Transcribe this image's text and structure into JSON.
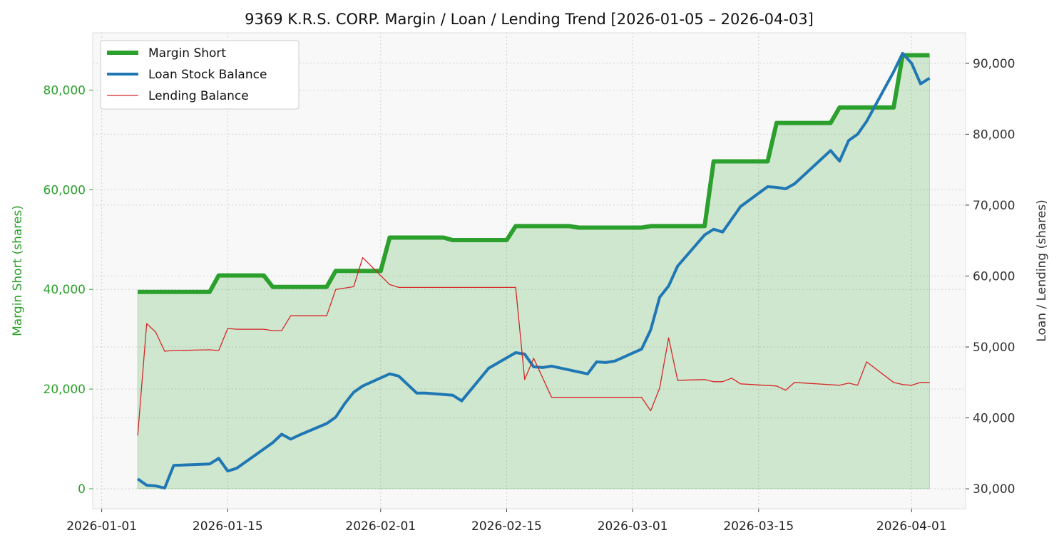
{
  "chart_data": {
    "type": "line",
    "title": "9369 K.R.S. CORP. Margin / Loan / Lending Trend [2026-01-05 – 2026-04-03]",
    "ylabel_left": "Margin Short (shares)",
    "ylabel_right": "Loan / Lending (shares)",
    "xlabel": "",
    "x_ticks": [
      "2026-01-01",
      "2026-01-15",
      "2026-02-01",
      "2026-02-15",
      "2026-03-01",
      "2026-03-15",
      "2026-04-01"
    ],
    "y_left_ticks": [
      "0",
      "20,000",
      "40,000",
      "60,000",
      "80,000"
    ],
    "y_right_ticks": [
      "30,000",
      "40,000",
      "50,000",
      "60,000",
      "70,000",
      "80,000",
      "90,000"
    ],
    "xlim": [
      "2025-12-31",
      "2026-04-07"
    ],
    "ylim_left": [
      -4000,
      91500
    ],
    "ylim_right": [
      27200,
      94300
    ],
    "grid": true,
    "legend_position": "top-left",
    "colors": {
      "margin": "#2ca02c",
      "loan": "#1f77b4",
      "lending": "#d62728",
      "fill": "#2ca02c",
      "left_axis": "#2ca02c",
      "right_axis": "#333333"
    },
    "series": [
      {
        "name": "Margin Short",
        "axis": "left",
        "points": [
          [
            "2026-01-05",
            39500
          ],
          [
            "2026-01-13",
            39500
          ],
          [
            "2026-01-14",
            42800
          ],
          [
            "2026-01-19",
            42800
          ],
          [
            "2026-01-20",
            40500
          ],
          [
            "2026-01-26",
            40500
          ],
          [
            "2026-01-27",
            43700
          ],
          [
            "2026-02-01",
            43700
          ],
          [
            "2026-02-02",
            50400
          ],
          [
            "2026-02-08",
            50400
          ],
          [
            "2026-02-09",
            49900
          ],
          [
            "2026-02-15",
            49900
          ],
          [
            "2026-02-16",
            52700
          ],
          [
            "2026-02-22",
            52700
          ],
          [
            "2026-02-23",
            52400
          ],
          [
            "2026-03-02",
            52400
          ],
          [
            "2026-03-03",
            52700
          ],
          [
            "2026-03-09",
            52700
          ],
          [
            "2026-03-10",
            65700
          ],
          [
            "2026-03-16",
            65700
          ],
          [
            "2026-03-17",
            73400
          ],
          [
            "2026-03-23",
            73400
          ],
          [
            "2026-03-24",
            76500
          ],
          [
            "2026-03-30",
            76500
          ],
          [
            "2026-03-31",
            87000
          ],
          [
            "2026-04-03",
            87000
          ]
        ]
      },
      {
        "name": "Loan Stock Balance",
        "axis": "right",
        "points": [
          [
            "2026-01-05",
            31400
          ],
          [
            "2026-01-06",
            30500
          ],
          [
            "2026-01-07",
            30400
          ],
          [
            "2026-01-08",
            30100
          ],
          [
            "2026-01-09",
            33300
          ],
          [
            "2026-01-13",
            33500
          ],
          [
            "2026-01-14",
            34300
          ],
          [
            "2026-01-15",
            32500
          ],
          [
            "2026-01-16",
            32900
          ],
          [
            "2026-01-19",
            35600
          ],
          [
            "2026-01-20",
            36500
          ],
          [
            "2026-01-21",
            37700
          ],
          [
            "2026-01-22",
            37000
          ],
          [
            "2026-01-23",
            37600
          ],
          [
            "2026-01-26",
            39200
          ],
          [
            "2026-01-27",
            40100
          ],
          [
            "2026-01-28",
            42000
          ],
          [
            "2026-01-29",
            43600
          ],
          [
            "2026-01-30",
            44500
          ],
          [
            "2026-02-02",
            46200
          ],
          [
            "2026-02-03",
            45900
          ],
          [
            "2026-02-05",
            43500
          ],
          [
            "2026-02-06",
            43500
          ],
          [
            "2026-02-09",
            43200
          ],
          [
            "2026-02-10",
            42400
          ],
          [
            "2026-02-13",
            47000
          ],
          [
            "2026-02-16",
            49200
          ],
          [
            "2026-02-17",
            49000
          ],
          [
            "2026-02-18",
            47200
          ],
          [
            "2026-02-19",
            47100
          ],
          [
            "2026-02-20",
            47300
          ],
          [
            "2026-02-24",
            46200
          ],
          [
            "2026-02-25",
            47900
          ],
          [
            "2026-02-26",
            47800
          ],
          [
            "2026-02-27",
            48000
          ],
          [
            "2026-03-02",
            49700
          ],
          [
            "2026-03-03",
            52400
          ],
          [
            "2026-03-04",
            57000
          ],
          [
            "2026-03-05",
            58600
          ],
          [
            "2026-03-06",
            61400
          ],
          [
            "2026-03-09",
            65800
          ],
          [
            "2026-03-10",
            66600
          ],
          [
            "2026-03-11",
            66200
          ],
          [
            "2026-03-13",
            69800
          ],
          [
            "2026-03-16",
            72600
          ],
          [
            "2026-03-17",
            72500
          ],
          [
            "2026-03-18",
            72300
          ],
          [
            "2026-03-19",
            73000
          ],
          [
            "2026-03-23",
            77700
          ],
          [
            "2026-03-24",
            76200
          ],
          [
            "2026-03-25",
            79100
          ],
          [
            "2026-03-26",
            80000
          ],
          [
            "2026-03-27",
            81800
          ],
          [
            "2026-03-30",
            88800
          ],
          [
            "2026-03-31",
            91400
          ],
          [
            "2026-04-01",
            90000
          ],
          [
            "2026-04-02",
            87100
          ],
          [
            "2026-04-03",
            87900
          ]
        ]
      },
      {
        "name": "Lending Balance",
        "axis": "right",
        "points": [
          [
            "2026-01-05",
            37500
          ],
          [
            "2026-01-06",
            53300
          ],
          [
            "2026-01-07",
            52100
          ],
          [
            "2026-01-08",
            49400
          ],
          [
            "2026-01-09",
            49500
          ],
          [
            "2026-01-13",
            49600
          ],
          [
            "2026-01-14",
            49500
          ],
          [
            "2026-01-15",
            52600
          ],
          [
            "2026-01-16",
            52500
          ],
          [
            "2026-01-19",
            52500
          ],
          [
            "2026-01-20",
            52300
          ],
          [
            "2026-01-21",
            52300
          ],
          [
            "2026-01-22",
            54400
          ],
          [
            "2026-01-26",
            54400
          ],
          [
            "2026-01-27",
            58100
          ],
          [
            "2026-01-29",
            58500
          ],
          [
            "2026-01-30",
            62600
          ],
          [
            "2026-02-02",
            58800
          ],
          [
            "2026-02-03",
            58400
          ],
          [
            "2026-02-16",
            58400
          ],
          [
            "2026-02-17",
            45400
          ],
          [
            "2026-02-18",
            48400
          ],
          [
            "2026-02-20",
            42900
          ],
          [
            "2026-03-02",
            42900
          ],
          [
            "2026-03-03",
            41000
          ],
          [
            "2026-03-04",
            44200
          ],
          [
            "2026-03-05",
            51300
          ],
          [
            "2026-03-06",
            45300
          ],
          [
            "2026-03-09",
            45400
          ],
          [
            "2026-03-10",
            45100
          ],
          [
            "2026-03-11",
            45100
          ],
          [
            "2026-03-12",
            45600
          ],
          [
            "2026-03-13",
            44800
          ],
          [
            "2026-03-17",
            44500
          ],
          [
            "2026-03-18",
            43900
          ],
          [
            "2026-03-19",
            45000
          ],
          [
            "2026-03-24",
            44600
          ],
          [
            "2026-03-25",
            44900
          ],
          [
            "2026-03-26",
            44600
          ],
          [
            "2026-03-27",
            47900
          ],
          [
            "2026-03-30",
            45000
          ],
          [
            "2026-03-31",
            44700
          ],
          [
            "2026-04-01",
            44600
          ],
          [
            "2026-04-02",
            45000
          ],
          [
            "2026-04-03",
            45000
          ]
        ]
      }
    ]
  }
}
